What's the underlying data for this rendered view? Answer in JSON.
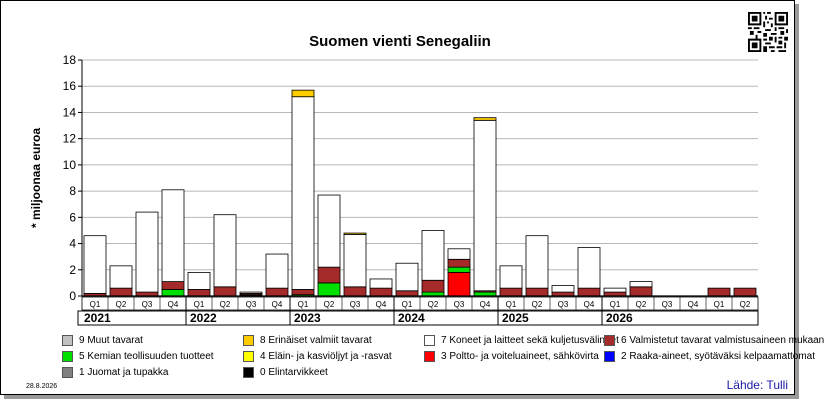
{
  "chart_data": {
    "type": "bar",
    "stacked": true,
    "title": "Suomen vienti Senegaliin",
    "ylabel": "* miljoonaa euroa",
    "ylim": [
      0,
      18
    ],
    "yticks": [
      0,
      2,
      4,
      6,
      8,
      10,
      12,
      14,
      16,
      18
    ],
    "grid": true,
    "categories": [
      "Q1",
      "Q2",
      "Q3",
      "Q4",
      "Q1",
      "Q2",
      "Q3",
      "Q4",
      "Q1",
      "Q2",
      "Q3",
      "Q4",
      "Q1",
      "Q2",
      "Q3",
      "Q4",
      "Q1",
      "Q2",
      "Q3",
      "Q4",
      "Q1",
      "Q2",
      "Q3",
      "Q4",
      "Q1",
      "Q2"
    ],
    "years": [
      {
        "label": "2021",
        "quarters": 4
      },
      {
        "label": "2022",
        "quarters": 4
      },
      {
        "label": "2023",
        "quarters": 4
      },
      {
        "label": "2024",
        "quarters": 4
      },
      {
        "label": "2025",
        "quarters": 4
      },
      {
        "label": "2026",
        "quarters": 2
      }
    ],
    "series": [
      {
        "name": "0 Elintarvikkeet",
        "color": "#000000",
        "values": [
          0,
          0,
          0,
          0,
          0,
          0,
          0.1,
          0,
          0,
          0,
          0,
          0,
          0,
          0,
          0,
          0,
          0,
          0,
          0,
          0,
          0,
          0,
          0,
          0,
          0,
          0
        ]
      },
      {
        "name": "1 Juomat ja tupakka",
        "color": "#808080",
        "values": [
          0,
          0,
          0,
          0,
          0,
          0,
          0,
          0,
          0,
          0,
          0,
          0,
          0,
          0,
          0,
          0,
          0,
          0,
          0,
          0,
          0,
          0,
          0,
          0,
          0,
          0
        ]
      },
      {
        "name": "2 Raaka-aineet, syötäväksi kelpaamattomat",
        "color": "#0000ff",
        "values": [
          0,
          0,
          0,
          0,
          0,
          0,
          0,
          0,
          0,
          0,
          0,
          0,
          0,
          0,
          0,
          0,
          0,
          0,
          0,
          0,
          0,
          0,
          0,
          0,
          0,
          0
        ]
      },
      {
        "name": "3 Poltto- ja voiteluaineet, sähkövirta",
        "color": "#ff0000",
        "values": [
          0,
          0,
          0,
          0,
          0,
          0,
          0,
          0,
          0,
          0,
          0,
          0,
          0,
          0,
          1.8,
          0,
          0,
          0,
          0,
          0,
          0,
          0,
          0,
          0,
          0,
          0
        ]
      },
      {
        "name": "4 Eläin- ja kasviöljyt ja -rasvat",
        "color": "#ffff00",
        "values": [
          0,
          0,
          0,
          0,
          0,
          0,
          0,
          0,
          0,
          0,
          0,
          0,
          0,
          0,
          0,
          0,
          0,
          0,
          0,
          0,
          0,
          0,
          0,
          0,
          0,
          0
        ]
      },
      {
        "name": "5 Kemian teollisuuden tuotteet",
        "color": "#00e000",
        "values": [
          0,
          0,
          0,
          0.5,
          0,
          0,
          0,
          0,
          0.1,
          1.0,
          0,
          0,
          0,
          0.3,
          0.4,
          0.3,
          0,
          0,
          0,
          0,
          0,
          0,
          0,
          0,
          0,
          0
        ]
      },
      {
        "name": "6 Valmistetut tavarat valmistusaineen mukaan",
        "color": "#a52a2a",
        "values": [
          0.2,
          0.6,
          0.3,
          0.6,
          0.5,
          0.7,
          0.1,
          0.6,
          0.4,
          1.2,
          0.7,
          0.6,
          0.4,
          0.9,
          0.6,
          0.1,
          0.6,
          0.6,
          0.3,
          0.6,
          0.3,
          0.7,
          0,
          0,
          0.6,
          0.6
        ]
      },
      {
        "name": "7 Koneet ja laitteet sekä kuljetusvälineet",
        "color": "#ffffff",
        "values": [
          4.4,
          1.7,
          6.1,
          7.0,
          1.3,
          5.5,
          0.1,
          2.6,
          14.7,
          5.5,
          4.0,
          0.7,
          2.1,
          3.8,
          0.8,
          13.0,
          1.7,
          4.0,
          0.5,
          3.1,
          0.3,
          0.4,
          0,
          0,
          0,
          0
        ]
      },
      {
        "name": "8 Erinäiset valmiit tavarat",
        "color": "#ffcc00",
        "values": [
          0,
          0,
          0,
          0,
          0,
          0,
          0,
          0,
          0.5,
          0,
          0.1,
          0,
          0,
          0,
          0,
          0.2,
          0,
          0,
          0,
          0,
          0,
          0,
          0,
          0,
          0,
          0
        ]
      },
      {
        "name": "9 Muut tavarat",
        "color": "#c0c0c0",
        "values": [
          0,
          0,
          0,
          0,
          0,
          0,
          0,
          0,
          0,
          0,
          0,
          0,
          0,
          0,
          0,
          0,
          0,
          0,
          0,
          0,
          0,
          0,
          0,
          0,
          0,
          0
        ]
      }
    ],
    "legend_order": [
      9,
      8,
      7,
      6,
      5,
      4,
      3,
      2,
      1,
      0
    ],
    "legend_position": "bottom"
  },
  "footer": {
    "date": "28.8.2026",
    "source": "Lähde: Tulli"
  }
}
